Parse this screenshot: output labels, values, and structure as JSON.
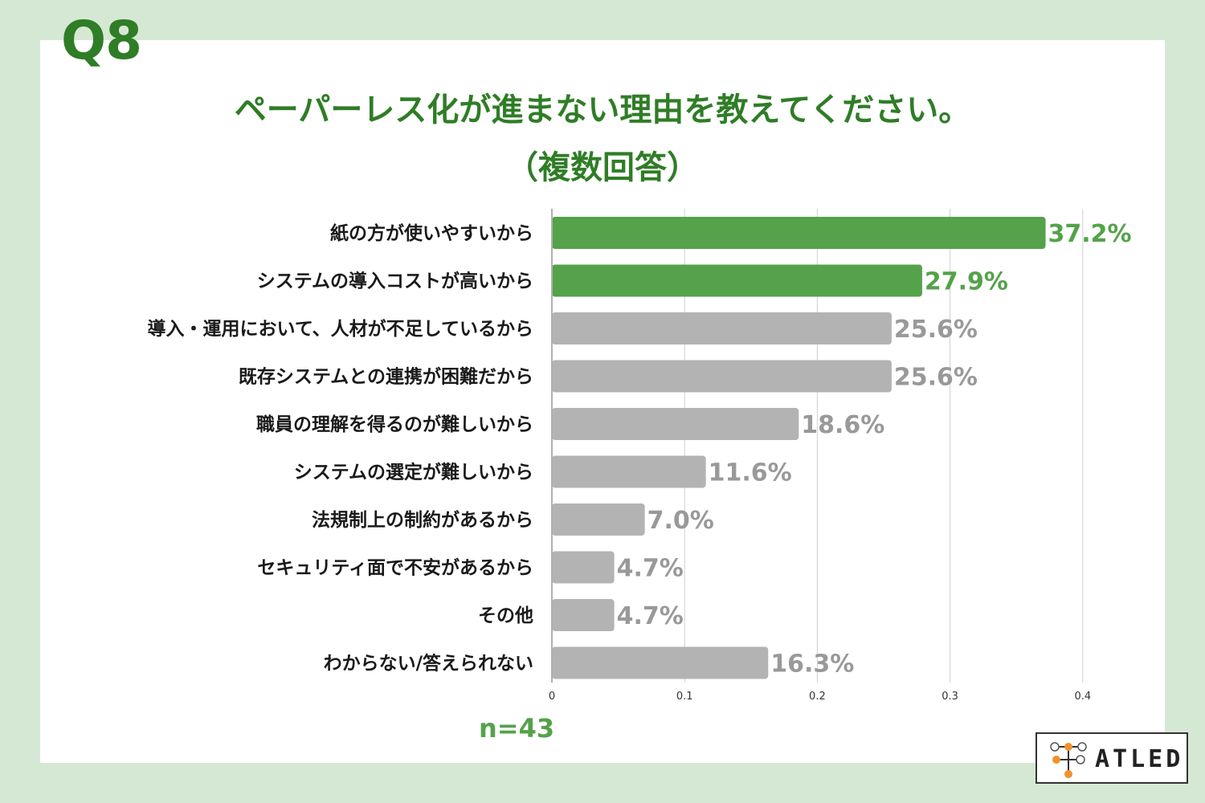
{
  "question_label": "Q8",
  "title": "ペーパーレス化が進まない理由を教えてください。",
  "subtitle": "（複数回答）",
  "sample_size": "n=43",
  "logo": {
    "text": "ATLED"
  },
  "colors": {
    "highlight_bar": "#54a24a",
    "default_bar": "#b3b3b3",
    "highlight_text": "#54a24a",
    "default_text": "#999999",
    "title": "#2f7d26",
    "background": "#d5e8d4"
  },
  "chart_data": {
    "type": "bar",
    "orientation": "horizontal",
    "categories": [
      "紙の方が使いやすいから",
      "システムの導入コストが高いから",
      "導入・運用において、人材が不足しているから",
      "既存システムとの連携が困難だから",
      "職員の理解を得るのが難しいから",
      "システムの選定が難しいから",
      "法規制上の制約があるから",
      "セキュリティ面で不安があるから",
      "その他",
      "わからない/答えられない"
    ],
    "values": [
      0.372,
      0.279,
      0.256,
      0.256,
      0.186,
      0.116,
      0.07,
      0.047,
      0.047,
      0.163
    ],
    "value_labels": [
      "37.2%",
      "27.9%",
      "25.6%",
      "25.6%",
      "18.6%",
      "11.6%",
      "7.0%",
      "4.7%",
      "4.7%",
      "16.3%"
    ],
    "highlighted": [
      true,
      true,
      false,
      false,
      false,
      false,
      false,
      false,
      false,
      false
    ],
    "xlim": [
      0,
      0.4
    ],
    "xticks": [
      0,
      0.1,
      0.2,
      0.3,
      0.4
    ],
    "xtick_labels": [
      "0",
      "0.1",
      "0.2",
      "0.3",
      "0.4"
    ],
    "grid": true
  }
}
